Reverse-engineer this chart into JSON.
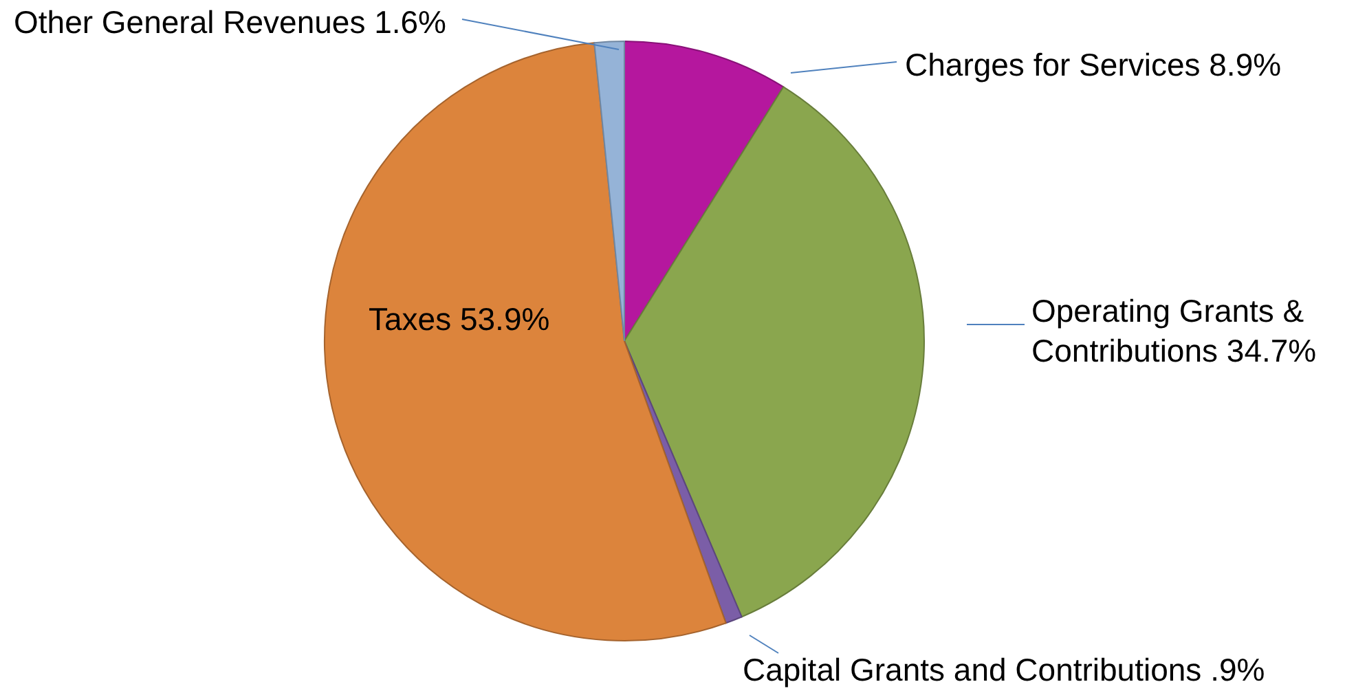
{
  "chart_data": {
    "type": "pie",
    "categories": [
      "Charges for Services",
      "Operating Grants & Contributions",
      "Capital Grants and Contributions",
      "Taxes",
      "Other General Revenues"
    ],
    "values": [
      8.9,
      34.7,
      0.9,
      53.9,
      1.6
    ],
    "value_labels": [
      "8.9%",
      "34.7%",
      ".9%",
      "53.9%",
      "1.6%"
    ],
    "colors": [
      "#b5179e",
      "#8aa64e",
      "#7b5ea7",
      "#dc843c",
      "#95b3d7"
    ]
  }
}
